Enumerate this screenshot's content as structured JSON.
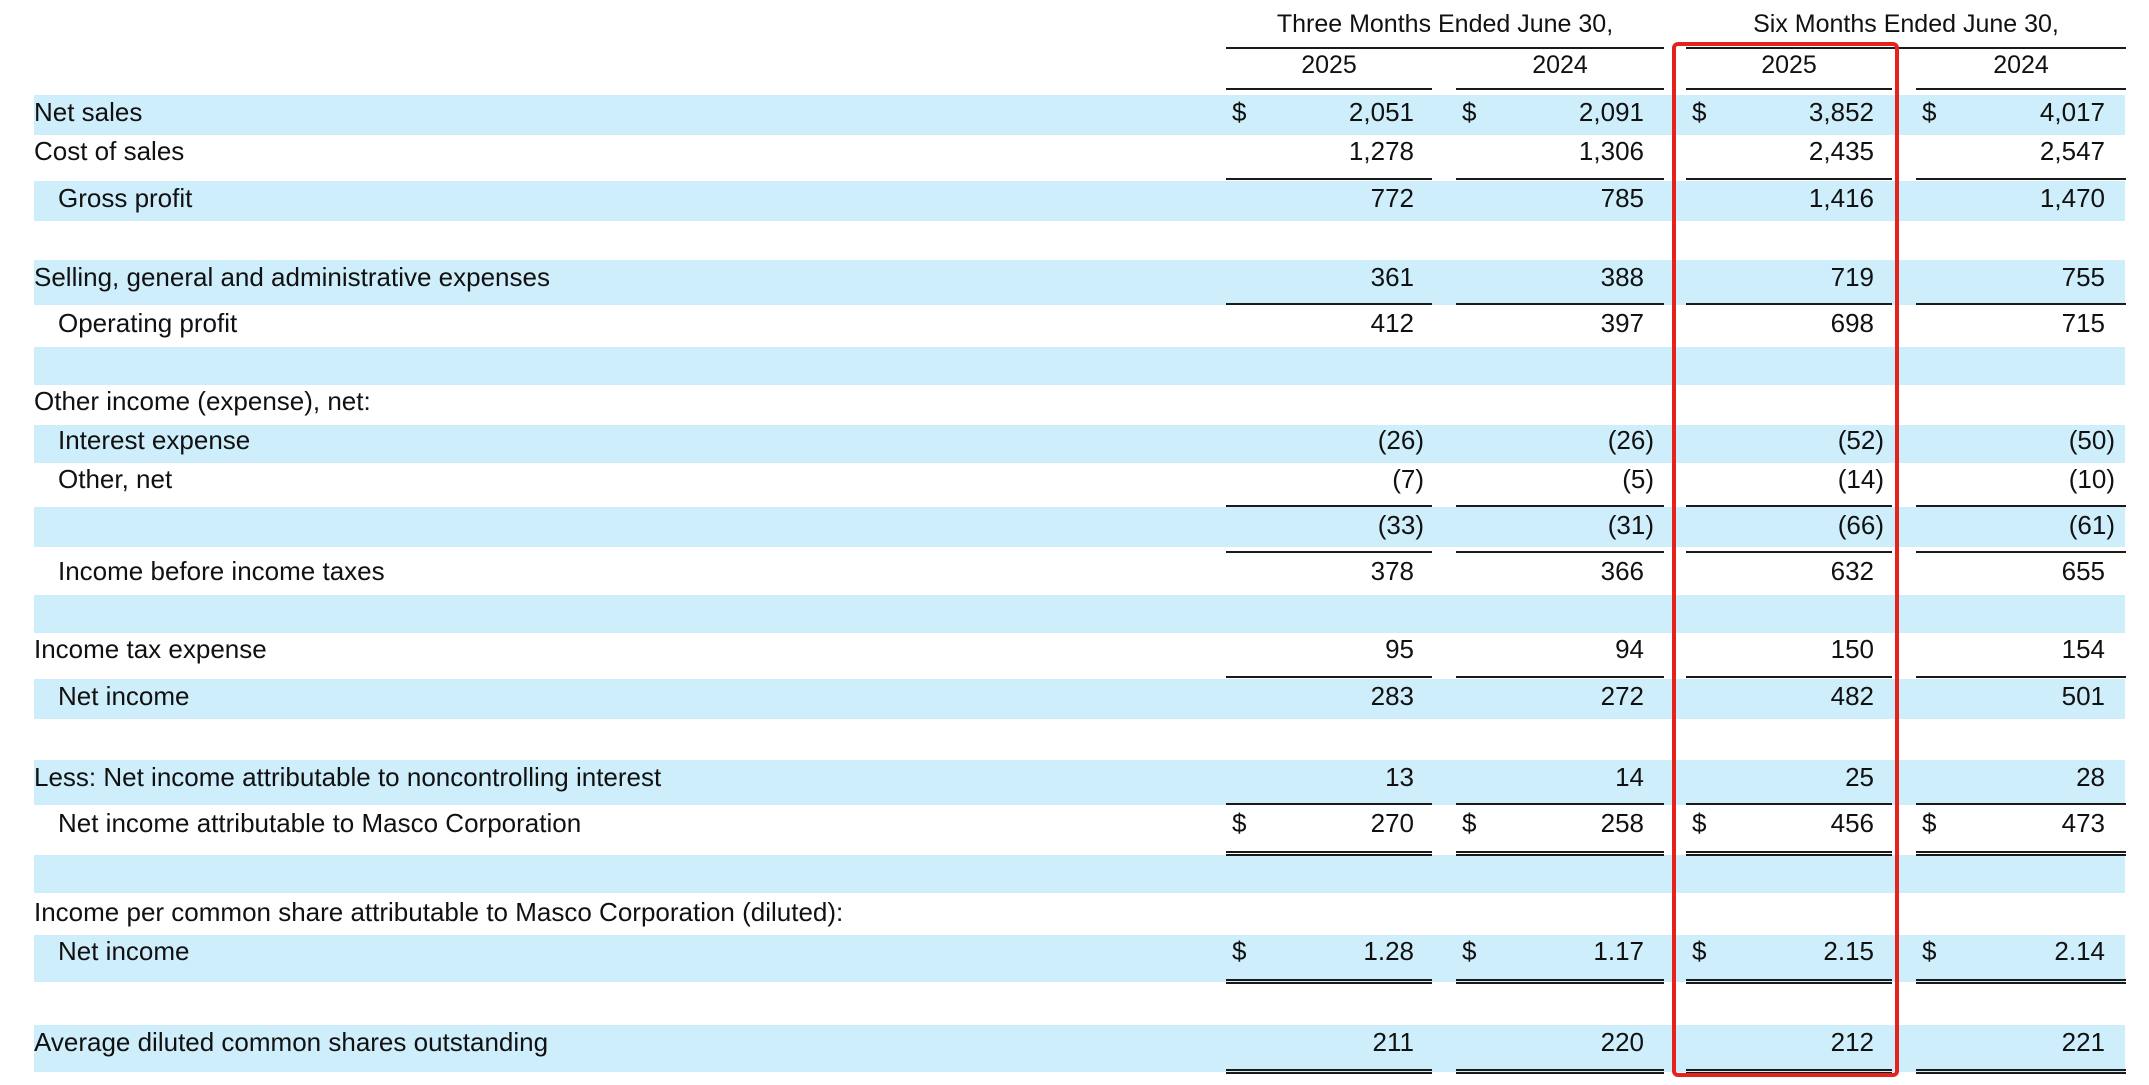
{
  "header": {
    "three_months": "Three Months Ended June 30,",
    "six_months": "Six Months Ended June 30,",
    "years": [
      "2025",
      "2024",
      "2025",
      "2024"
    ]
  },
  "currency_symbol": "$",
  "rows": [
    {
      "key": "net_sales",
      "label": "Net sales",
      "values": [
        "2,051",
        "2,091",
        "3,852",
        "4,017"
      ]
    },
    {
      "key": "cost_of_sales",
      "label": "Cost of sales",
      "values": [
        "1,278",
        "1,306",
        "2,435",
        "2,547"
      ]
    },
    {
      "key": "gross_profit",
      "label": "Gross profit",
      "values": [
        "772",
        "785",
        "1,416",
        "1,470"
      ]
    },
    {
      "key": "sga",
      "label": "Selling, general and administrative expenses",
      "values": [
        "361",
        "388",
        "719",
        "755"
      ]
    },
    {
      "key": "operating_profit",
      "label": "Operating profit",
      "values": [
        "412",
        "397",
        "698",
        "715"
      ]
    },
    {
      "key": "other_income",
      "label": "Other income (expense), net:",
      "values": [
        "",
        "",
        "",
        ""
      ]
    },
    {
      "key": "interest_expense",
      "label": "Interest expense",
      "values": [
        "(26)",
        "(26)",
        "(52)",
        "(50)"
      ]
    },
    {
      "key": "other_net",
      "label": "Other, net",
      "values": [
        "(7)",
        "(5)",
        "(14)",
        "(10)"
      ]
    },
    {
      "key": "other_total",
      "label": "",
      "values": [
        "(33)",
        "(31)",
        "(66)",
        "(61)"
      ]
    },
    {
      "key": "income_before_taxes",
      "label": "Income before income taxes",
      "values": [
        "378",
        "366",
        "632",
        "655"
      ]
    },
    {
      "key": "income_tax_expense",
      "label": "Income tax expense",
      "values": [
        "95",
        "94",
        "150",
        "154"
      ]
    },
    {
      "key": "net_income",
      "label": "Net income",
      "values": [
        "283",
        "272",
        "482",
        "501"
      ]
    },
    {
      "key": "nci",
      "label": "Less: Net income attributable to noncontrolling interest",
      "values": [
        "13",
        "14",
        "25",
        "28"
      ]
    },
    {
      "key": "ni_masco",
      "label": "Net income attributable to Masco Corporation",
      "values": [
        "270",
        "258",
        "456",
        "473"
      ]
    },
    {
      "key": "eps_header",
      "label": "Income per common share attributable to Masco Corporation (diluted):",
      "values": [
        "",
        "",
        "",
        ""
      ]
    },
    {
      "key": "eps_net_income",
      "label": "Net income",
      "values": [
        "1.28",
        "1.17",
        "2.15",
        "2.14"
      ]
    },
    {
      "key": "avg_shares",
      "label": "Average diluted common shares outstanding",
      "values": [
        "211",
        "220",
        "212",
        "221"
      ]
    }
  ],
  "colors": {
    "stripe": "#cfeefb",
    "highlight": "#e4231c",
    "rule": "#1a1a1a"
  }
}
